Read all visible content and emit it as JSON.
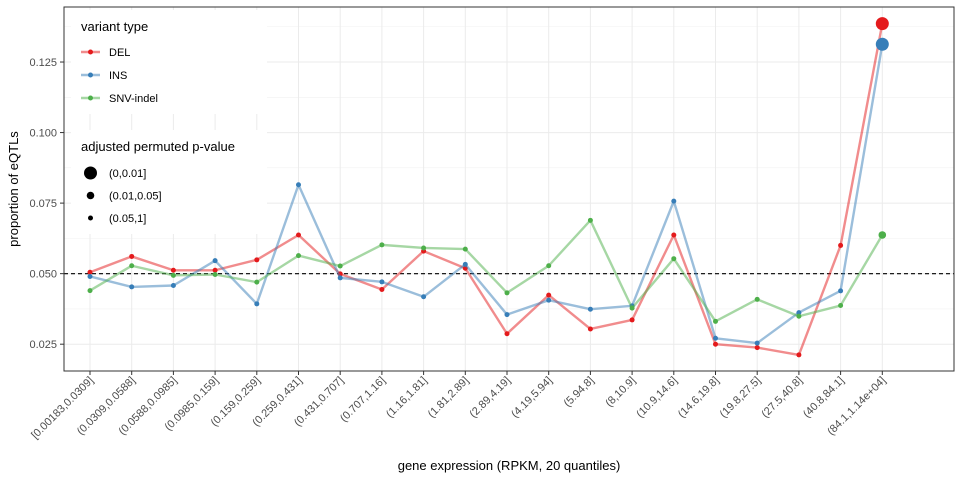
{
  "chart_data": {
    "type": "line",
    "xlabel": "gene expression (RPKM, 20 quantiles)",
    "ylabel": "proportion of eQTLs",
    "ylim": [
      0.0155,
      0.1445
    ],
    "yticks": [
      0.025,
      0.05,
      0.075,
      0.1,
      0.125
    ],
    "ytick_labels": [
      "0.025",
      "0.050",
      "0.075",
      "0.100",
      "0.125"
    ],
    "reference_line": {
      "y": 0.05,
      "style": "dashed",
      "color": "#000000"
    },
    "grid": true,
    "legend_placement": "top-left",
    "categories": [
      "[0.00183,0.0309]",
      "(0.0309,0.0588]",
      "(0.0588,0.0985]",
      "(0.0985,0.159]",
      "(0.159,0.259]",
      "(0.259,0.431]",
      "(0.431,0.707]",
      "(0.707,1.16]",
      "(1.16,1.81]",
      "(1.81,2.89]",
      "(2.89,4.19]",
      "(4.19,5.94]",
      "(5.94,8]",
      "(8,10.9]",
      "(10.9,14.6]",
      "(14.6,19.8]",
      "(19.8,27.5]",
      "(27.5,40.8]",
      "(40.8,84.1]",
      "(84.1,1.14e+04]"
    ],
    "series": [
      {
        "name": "DEL",
        "color": "#E41A1C",
        "values": [
          0.0505,
          0.0561,
          0.0512,
          0.0512,
          0.0549,
          0.0637,
          0.0499,
          0.0444,
          0.058,
          0.0519,
          0.0287,
          0.0424,
          0.0304,
          0.0336,
          0.0637,
          0.025,
          0.0238,
          0.0212,
          0.06,
          0.1386
        ],
        "pvalue_class": [
          "(0.05,1]",
          "(0.05,1]",
          "(0.05,1]",
          "(0.05,1]",
          "(0.05,1]",
          "(0.05,1]",
          "(0.05,1]",
          "(0.05,1]",
          "(0.05,1]",
          "(0.05,1]",
          "(0.05,1]",
          "(0.05,1]",
          "(0.05,1]",
          "(0.05,1]",
          "(0.05,1]",
          "(0.05,1]",
          "(0.05,1]",
          "(0.05,1]",
          "(0.05,1]",
          "(0,0.01]"
        ]
      },
      {
        "name": "INS",
        "color": "#377EB8",
        "values": [
          0.049,
          0.0453,
          0.0458,
          0.0546,
          0.0393,
          0.0815,
          0.0485,
          0.0471,
          0.0418,
          0.0533,
          0.0355,
          0.0406,
          0.0374,
          0.0386,
          0.0757,
          0.0271,
          0.0254,
          0.0362,
          0.0439,
          0.1313
        ],
        "pvalue_class": [
          "(0.05,1]",
          "(0.05,1]",
          "(0.05,1]",
          "(0.05,1]",
          "(0.05,1]",
          "(0.05,1]",
          "(0.05,1]",
          "(0.05,1]",
          "(0.05,1]",
          "(0.05,1]",
          "(0.05,1]",
          "(0.05,1]",
          "(0.05,1]",
          "(0.05,1]",
          "(0.05,1]",
          "(0.05,1]",
          "(0.05,1]",
          "(0.05,1]",
          "(0.05,1]",
          "(0,0.01]"
        ]
      },
      {
        "name": "SNV-indel",
        "color": "#4DAF4A",
        "values": [
          0.044,
          0.0528,
          0.0494,
          0.0497,
          0.047,
          0.0564,
          0.0527,
          0.0602,
          0.0591,
          0.0587,
          0.0432,
          0.0528,
          0.0689,
          0.0378,
          0.0553,
          0.0331,
          0.0409,
          0.0349,
          0.0387,
          0.0637
        ],
        "pvalue_class": [
          "(0.05,1]",
          "(0.05,1]",
          "(0.05,1]",
          "(0.05,1]",
          "(0.05,1]",
          "(0.05,1]",
          "(0.05,1]",
          "(0.05,1]",
          "(0.05,1]",
          "(0.05,1]",
          "(0.05,1]",
          "(0.05,1]",
          "(0.05,1]",
          "(0.05,1]",
          "(0.05,1]",
          "(0.05,1]",
          "(0.05,1]",
          "(0.05,1]",
          "(0.05,1]",
          "(0.01,0.05]"
        ]
      }
    ],
    "legends": [
      {
        "title": "variant type",
        "entries": [
          "DEL",
          "INS",
          "SNV-indel"
        ]
      },
      {
        "title": "adjusted permuted p-value",
        "entries": [
          "(0,0.01]",
          "(0.01,0.05]",
          "(0.05,1]"
        ]
      }
    ]
  }
}
